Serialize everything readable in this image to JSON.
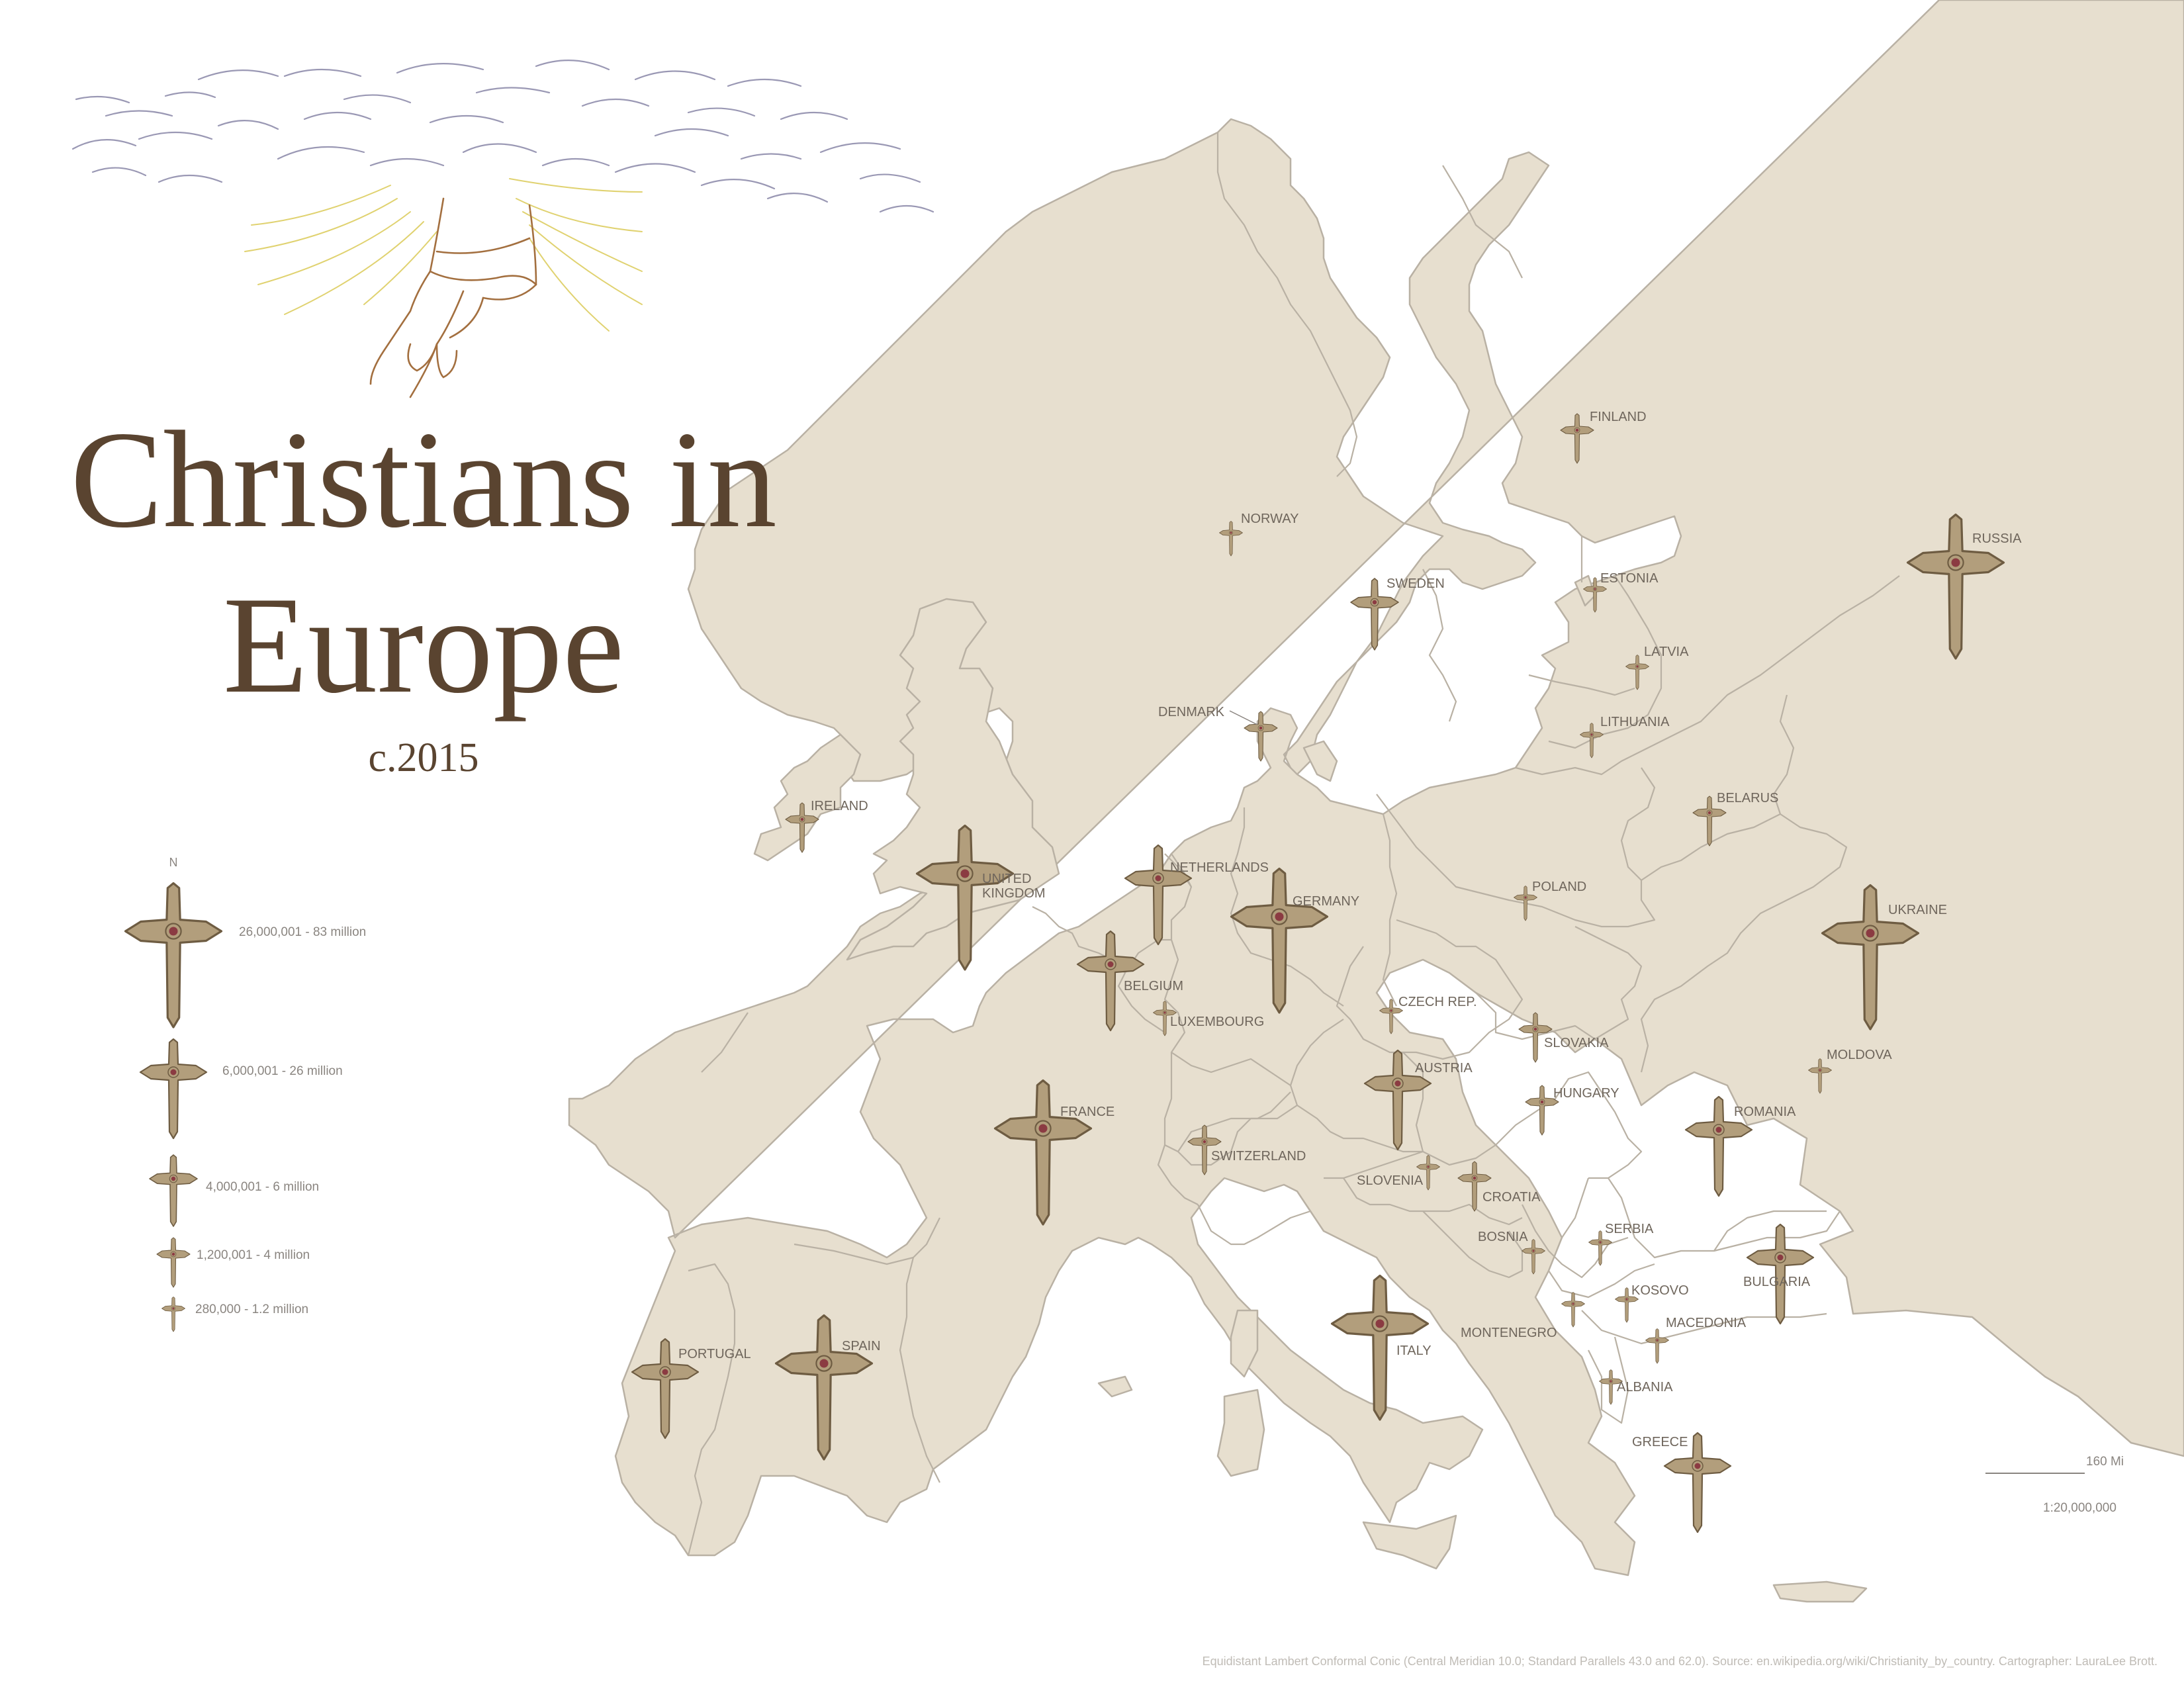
{
  "title_line1": "Christians in",
  "title_line2": "Europe",
  "subtitle": "c.2015",
  "legend": {
    "north": "N",
    "items": [
      {
        "label": "26,000,001 - 83 million",
        "level": 5
      },
      {
        "label": "6,000,001 - 26 million",
        "level": 4
      },
      {
        "label": "4,000,001 - 6 million",
        "level": 3
      },
      {
        "label": "1,200,001 - 4 million",
        "level": 2
      },
      {
        "label": "280,000 - 1.2 million",
        "level": 1
      }
    ]
  },
  "countries": [
    {
      "name": "FINLAND",
      "level": 2
    },
    {
      "name": "NORWAY",
      "level": 1
    },
    {
      "name": "SWEDEN",
      "level": 3
    },
    {
      "name": "RUSSIA",
      "level": 5
    },
    {
      "name": "ESTONIA",
      "level": 1
    },
    {
      "name": "LATVIA",
      "level": 1
    },
    {
      "name": "DENMARK",
      "level": 2
    },
    {
      "name": "LITHUANIA",
      "level": 1
    },
    {
      "name": "IRELAND",
      "level": 2
    },
    {
      "name": "BELARUS",
      "level": 2
    },
    {
      "name": "UNITED KINGDOM",
      "level": 5
    },
    {
      "name": "NETHERLANDS",
      "level": 4
    },
    {
      "name": "POLAND",
      "level": 1
    },
    {
      "name": "GERMANY",
      "level": 5
    },
    {
      "name": "UKRAINE",
      "level": 5
    },
    {
      "name": "BELGIUM",
      "level": 4
    },
    {
      "name": "LUXEMBOURG",
      "level": 1
    },
    {
      "name": "CZECH REP.",
      "level": 1
    },
    {
      "name": "SLOVAKIA",
      "level": 2
    },
    {
      "name": "MOLDOVA",
      "level": 1
    },
    {
      "name": "AUSTRIA",
      "level": 4
    },
    {
      "name": "HUNGARY",
      "level": 2
    },
    {
      "name": "FRANCE",
      "level": 5
    },
    {
      "name": "ROMANIA",
      "level": 4
    },
    {
      "name": "SWITZERLAND",
      "level": 2
    },
    {
      "name": "SLOVENIA",
      "level": 1
    },
    {
      "name": "CROATIA",
      "level": 2
    },
    {
      "name": "SERBIA",
      "level": 1
    },
    {
      "name": "BOSNIA",
      "level": 1
    },
    {
      "name": "BULGARIA",
      "level": 4
    },
    {
      "name": "KOSOVO",
      "level": 1
    },
    {
      "name": "MONTENEGRO",
      "level": 1
    },
    {
      "name": "MACEDONIA",
      "level": 1
    },
    {
      "name": "ITALY",
      "level": 5
    },
    {
      "name": "PORTUGAL",
      "level": 4
    },
    {
      "name": "SPAIN",
      "level": 5
    },
    {
      "name": "ALBANIA",
      "level": 1
    },
    {
      "name": "GREECE",
      "level": 4
    }
  ],
  "scale_distance": "160 Mi",
  "scale_ratio": "1:20,000,000",
  "source_note": "Equidistant Lambert Conformal Conic (Central Meridian 10.0; Standard Parallels 43.0 and 62.0). Source: en.wikipedia.org/wiki/Christianity_by_country. Cartographer: LauraLee Brott.",
  "colors": {
    "land": "#e7dfcf",
    "border": "#b9b1a4",
    "cross_fill": "#b29e7c",
    "cross_stroke": "#6e5c42",
    "rosette": "#8b3b42",
    "title": "#5a4430"
  }
}
